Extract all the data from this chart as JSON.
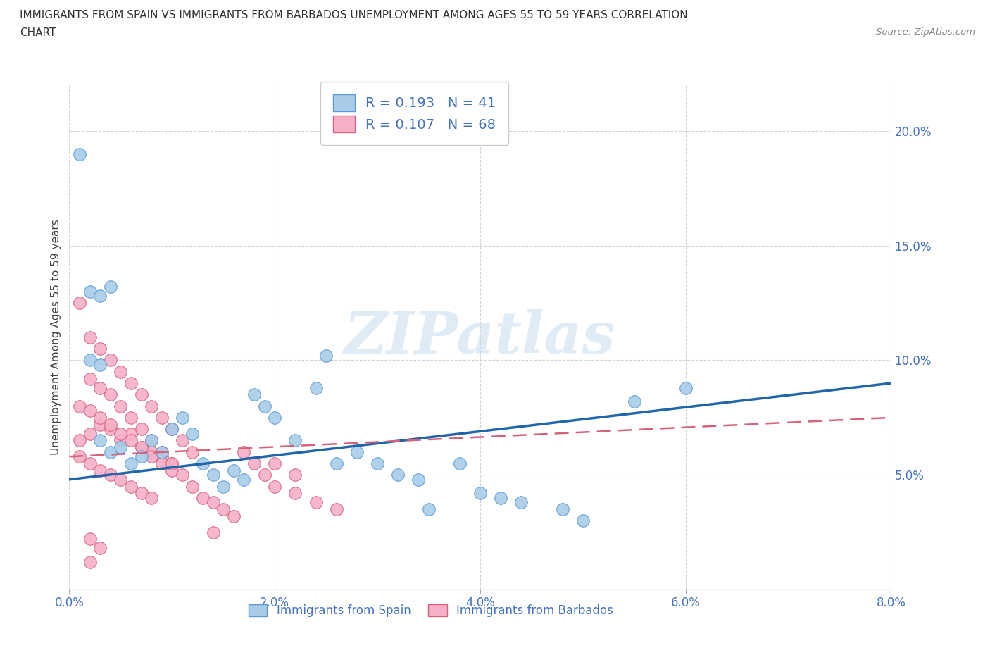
{
  "title_line1": "IMMIGRANTS FROM SPAIN VS IMMIGRANTS FROM BARBADOS UNEMPLOYMENT AMONG AGES 55 TO 59 YEARS CORRELATION",
  "title_line2": "CHART",
  "source": "Source: ZipAtlas.com",
  "ylabel": "Unemployment Among Ages 55 to 59 years",
  "xlim": [
    0.0,
    0.08
  ],
  "ylim": [
    0.0,
    0.22
  ],
  "xticks": [
    0.0,
    0.02,
    0.04,
    0.06,
    0.08
  ],
  "yticks": [
    0.05,
    0.1,
    0.15,
    0.2
  ],
  "xtick_labels": [
    "0.0%",
    "2.0%",
    "4.0%",
    "6.0%",
    "8.0%"
  ],
  "ytick_labels": [
    "5.0%",
    "10.0%",
    "15.0%",
    "20.0%"
  ],
  "spain_color": "#a8cce8",
  "barbados_color": "#f5b0c8",
  "spain_edge_color": "#5b9bd5",
  "barbados_edge_color": "#d9607a",
  "spain_line_color": "#2166ac",
  "barbados_line_color": "#d9607a",
  "R_spain": 0.193,
  "N_spain": 41,
  "R_barbados": 0.107,
  "N_barbados": 68,
  "watermark": "ZIPatlas",
  "legend_labels": [
    "Immigrants from Spain",
    "Immigrants from Barbados"
  ],
  "spain_x": [
    0.003,
    0.004,
    0.005,
    0.006,
    0.007,
    0.008,
    0.009,
    0.01,
    0.011,
    0.012,
    0.013,
    0.014,
    0.015,
    0.016,
    0.017,
    0.018,
    0.019,
    0.02,
    0.022,
    0.024,
    0.026,
    0.028,
    0.03,
    0.032,
    0.034,
    0.038,
    0.04,
    0.042,
    0.044,
    0.048,
    0.002,
    0.003,
    0.004,
    0.002,
    0.003,
    0.035,
    0.055,
    0.06,
    0.001,
    0.025,
    0.05
  ],
  "spain_y": [
    0.065,
    0.06,
    0.062,
    0.055,
    0.058,
    0.065,
    0.06,
    0.07,
    0.075,
    0.068,
    0.055,
    0.05,
    0.045,
    0.052,
    0.048,
    0.085,
    0.08,
    0.075,
    0.065,
    0.088,
    0.055,
    0.06,
    0.055,
    0.05,
    0.048,
    0.055,
    0.042,
    0.04,
    0.038,
    0.035,
    0.13,
    0.128,
    0.132,
    0.1,
    0.098,
    0.035,
    0.082,
    0.088,
    0.19,
    0.102,
    0.03
  ],
  "barbados_x": [
    0.001,
    0.002,
    0.003,
    0.004,
    0.005,
    0.006,
    0.007,
    0.008,
    0.009,
    0.01,
    0.001,
    0.002,
    0.003,
    0.004,
    0.005,
    0.006,
    0.007,
    0.008,
    0.009,
    0.01,
    0.001,
    0.002,
    0.003,
    0.004,
    0.005,
    0.006,
    0.007,
    0.008,
    0.002,
    0.003,
    0.004,
    0.005,
    0.006,
    0.007,
    0.008,
    0.009,
    0.01,
    0.011,
    0.012,
    0.013,
    0.014,
    0.015,
    0.016,
    0.017,
    0.018,
    0.019,
    0.02,
    0.022,
    0.024,
    0.026,
    0.002,
    0.003,
    0.004,
    0.005,
    0.006,
    0.007,
    0.008,
    0.009,
    0.01,
    0.011,
    0.012,
    0.001,
    0.002,
    0.003,
    0.014,
    0.02,
    0.022,
    0.002
  ],
  "barbados_y": [
    0.065,
    0.068,
    0.072,
    0.07,
    0.065,
    0.068,
    0.062,
    0.06,
    0.058,
    0.055,
    0.08,
    0.078,
    0.075,
    0.072,
    0.068,
    0.065,
    0.062,
    0.058,
    0.055,
    0.052,
    0.058,
    0.055,
    0.052,
    0.05,
    0.048,
    0.045,
    0.042,
    0.04,
    0.092,
    0.088,
    0.085,
    0.08,
    0.075,
    0.07,
    0.065,
    0.06,
    0.055,
    0.05,
    0.045,
    0.04,
    0.038,
    0.035,
    0.032,
    0.06,
    0.055,
    0.05,
    0.045,
    0.042,
    0.038,
    0.035,
    0.11,
    0.105,
    0.1,
    0.095,
    0.09,
    0.085,
    0.08,
    0.075,
    0.07,
    0.065,
    0.06,
    0.125,
    0.022,
    0.018,
    0.025,
    0.055,
    0.05,
    0.012
  ]
}
